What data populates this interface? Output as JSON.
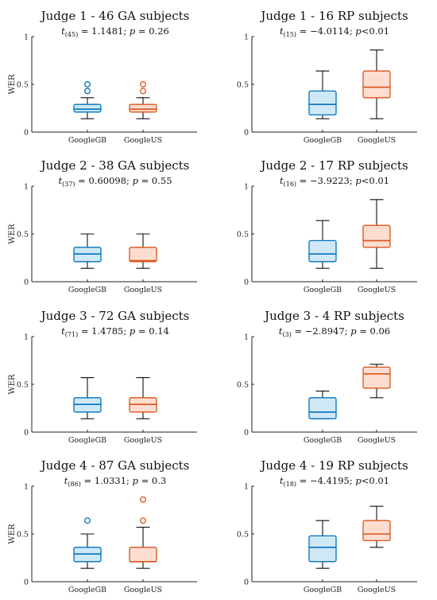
{
  "colors": {
    "GoogleGB": "#0072BD",
    "GoogleGB_fill": "#CFE8F6",
    "GoogleUS": "#D95319",
    "GoogleUS_fill": "#FCDDD0",
    "axis": "#222222"
  },
  "chart_data": [
    {
      "type": "box",
      "title": "Judge 1 - 46 GA subjects",
      "subtitle": {
        "t": "t",
        "df": "(45)",
        "rest": " = 1.1481; ",
        "p": "p",
        "prest": " = 0.26"
      },
      "ylabel": "WER",
      "ylim": [
        0,
        1
      ],
      "yticks": [
        "0",
        "0.5",
        "1"
      ],
      "categories": [
        "GoogleGB",
        "GoogleUS"
      ],
      "boxes": [
        {
          "min": 0.14,
          "q1": 0.21,
          "median": 0.24,
          "q3": 0.29,
          "max": 0.36,
          "outliers": [
            0.43,
            0.5
          ]
        },
        {
          "min": 0.14,
          "q1": 0.21,
          "median": 0.24,
          "q3": 0.29,
          "max": 0.36,
          "outliers": [
            0.43,
            0.5
          ]
        }
      ]
    },
    {
      "type": "box",
      "title": "Judge 1 - 16 RP subjects",
      "subtitle": {
        "t": "t",
        "df": "(15)",
        "rest": " = −4.0114; ",
        "p": "p",
        "prest": "<0.01"
      },
      "ylabel": "",
      "ylim": [
        0,
        1
      ],
      "yticks": [
        "0",
        "0.5",
        "1"
      ],
      "categories": [
        "GoogleGB",
        "GoogleUS"
      ],
      "boxes": [
        {
          "min": 0.14,
          "q1": 0.18,
          "median": 0.29,
          "q3": 0.43,
          "max": 0.64,
          "outliers": []
        },
        {
          "min": 0.14,
          "q1": 0.36,
          "median": 0.47,
          "q3": 0.64,
          "max": 0.86,
          "outliers": []
        }
      ]
    },
    {
      "type": "box",
      "title": "Judge 2 - 38 GA subjects",
      "subtitle": {
        "t": "t",
        "df": "(37)",
        "rest": " = 0.60098; ",
        "p": "p",
        "prest": " = 0.55"
      },
      "ylabel": "WER",
      "ylim": [
        0,
        1
      ],
      "yticks": [
        "0",
        "0.5",
        "1"
      ],
      "categories": [
        "GoogleGB",
        "GoogleUS"
      ],
      "boxes": [
        {
          "min": 0.14,
          "q1": 0.21,
          "median": 0.29,
          "q3": 0.36,
          "max": 0.5,
          "outliers": []
        },
        {
          "min": 0.14,
          "q1": 0.21,
          "median": 0.22,
          "q3": 0.36,
          "max": 0.5,
          "outliers": []
        }
      ]
    },
    {
      "type": "box",
      "title": "Judge 2 - 17 RP subjects",
      "subtitle": {
        "t": "t",
        "df": "(16)",
        "rest": " = −3.9223; ",
        "p": "p",
        "prest": "<0.01"
      },
      "ylabel": "",
      "ylim": [
        0,
        1
      ],
      "yticks": [
        "0",
        "0.5",
        "1"
      ],
      "categories": [
        "GoogleGB",
        "GoogleUS"
      ],
      "boxes": [
        {
          "min": 0.14,
          "q1": 0.21,
          "median": 0.29,
          "q3": 0.43,
          "max": 0.64,
          "outliers": []
        },
        {
          "min": 0.14,
          "q1": 0.36,
          "median": 0.43,
          "q3": 0.59,
          "max": 0.86,
          "outliers": []
        }
      ]
    },
    {
      "type": "box",
      "title": "Judge 3 - 72 GA subjects",
      "subtitle": {
        "t": "t",
        "df": "(71)",
        "rest": " = 1.4785; ",
        "p": "p",
        "prest": " = 0.14"
      },
      "ylabel": "WER",
      "ylim": [
        0,
        1
      ],
      "yticks": [
        "0",
        "0.5",
        "1"
      ],
      "categories": [
        "GoogleGB",
        "GoogleUS"
      ],
      "boxes": [
        {
          "min": 0.14,
          "q1": 0.21,
          "median": 0.29,
          "q3": 0.36,
          "max": 0.57,
          "outliers": []
        },
        {
          "min": 0.14,
          "q1": 0.21,
          "median": 0.29,
          "q3": 0.36,
          "max": 0.57,
          "outliers": []
        }
      ]
    },
    {
      "type": "box",
      "title": "Judge 3 - 4 RP subjects",
      "subtitle": {
        "t": "t",
        "df": "(3)",
        "rest": " = −2.8947; ",
        "p": "p",
        "prest": " = 0.06"
      },
      "ylabel": "",
      "ylim": [
        0,
        1
      ],
      "yticks": [
        "0",
        "0.5",
        "1"
      ],
      "categories": [
        "GoogleGB",
        "GoogleUS"
      ],
      "boxes": [
        {
          "min": 0.14,
          "q1": 0.14,
          "median": 0.21,
          "q3": 0.36,
          "max": 0.43,
          "outliers": []
        },
        {
          "min": 0.36,
          "q1": 0.46,
          "median": 0.61,
          "q3": 0.68,
          "max": 0.71,
          "outliers": []
        }
      ]
    },
    {
      "type": "box",
      "title": "Judge 4 - 87 GA subjects",
      "subtitle": {
        "t": "t",
        "df": "(86)",
        "rest": " = 1.0331; ",
        "p": "p",
        "prest": " = 0.3"
      },
      "ylabel": "WER",
      "ylim": [
        0,
        1
      ],
      "yticks": [
        "0",
        "0.5",
        "1"
      ],
      "categories": [
        "GoogleGB",
        "GoogleUS"
      ],
      "boxes": [
        {
          "min": 0.14,
          "q1": 0.21,
          "median": 0.29,
          "q3": 0.36,
          "max": 0.5,
          "outliers": [
            0.64
          ]
        },
        {
          "min": 0.14,
          "q1": 0.21,
          "median": 0.21,
          "q3": 0.36,
          "max": 0.57,
          "outliers": [
            0.64,
            0.86
          ]
        }
      ]
    },
    {
      "type": "box",
      "title": "Judge 4 - 19 RP subjects",
      "subtitle": {
        "t": "t",
        "df": "(18)",
        "rest": " = −4.4195; ",
        "p": "p",
        "prest": "<0.01"
      },
      "ylabel": "",
      "ylim": [
        0,
        1
      ],
      "yticks": [
        "0",
        "0.5",
        "1"
      ],
      "categories": [
        "GoogleGB",
        "GoogleUS"
      ],
      "boxes": [
        {
          "min": 0.14,
          "q1": 0.21,
          "median": 0.36,
          "q3": 0.48,
          "max": 0.64,
          "outliers": []
        },
        {
          "min": 0.36,
          "q1": 0.43,
          "median": 0.5,
          "q3": 0.64,
          "max": 0.79,
          "outliers": []
        }
      ]
    }
  ]
}
